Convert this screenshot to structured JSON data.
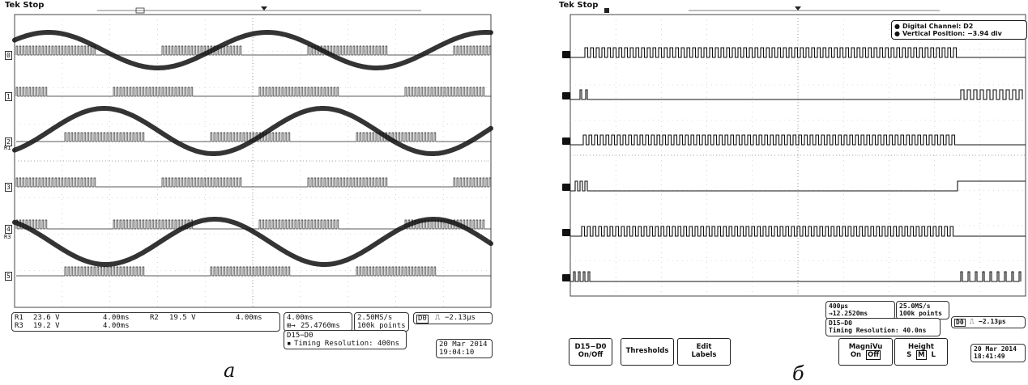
{
  "panel_a": {
    "header": "Tek Stop",
    "channel_labels": [
      "0",
      "1",
      "2",
      "3",
      "4",
      "5"
    ],
    "ref_labels": [
      "R1",
      "R3"
    ],
    "readout": {
      "r1": "R1",
      "r1_volt": "23.6 V",
      "r1_time": "4.00ms",
      "r2": "R2",
      "r2_volt": "19.5 V",
      "r2_time": "4.00ms",
      "r3": "R3",
      "r3_volt": "19.2 V",
      "r3_time": "4.00ms",
      "timebase": "4.00ms",
      "delay": "25.4760ms",
      "sample_rate": "2.50MS/s",
      "points": "100k points",
      "trigger_ch": "D0",
      "trigger_value": "−2.13µs",
      "bus": "D15−D0",
      "timing_resolution": "Timing Resolution: 400ns",
      "date": "20 Mar 2014",
      "time": "19:04:10"
    },
    "caption": "a"
  },
  "panel_b": {
    "header": "Tek Stop",
    "info_line1": "Digital Channel: D2",
    "info_line2": "Vertical Position: −3.94 div",
    "readout": {
      "timebase": "400µs",
      "delay": "→12.2520ms",
      "sample_rate": "25.0MS/s",
      "points": "100k points",
      "bus": "D15−D0",
      "timing_resolution": "Timing Resolution: 40.0ns",
      "trigger_ch": "D0",
      "trigger_value": "−2.13µs",
      "date": "20 Mar 2014",
      "time": "18:41:49"
    },
    "buttons": {
      "onoff_line1": "D15−D0",
      "onoff_line2": "On/Off",
      "thresholds": "Thresholds",
      "edit_line1": "Edit",
      "edit_line2": "Labels",
      "magnivu": "MagniVu",
      "magnivu_on": "On",
      "magnivu_off": "Off",
      "height": "Height",
      "height_s": "S",
      "height_m": "M",
      "height_l": "L"
    },
    "caption": "б"
  }
}
